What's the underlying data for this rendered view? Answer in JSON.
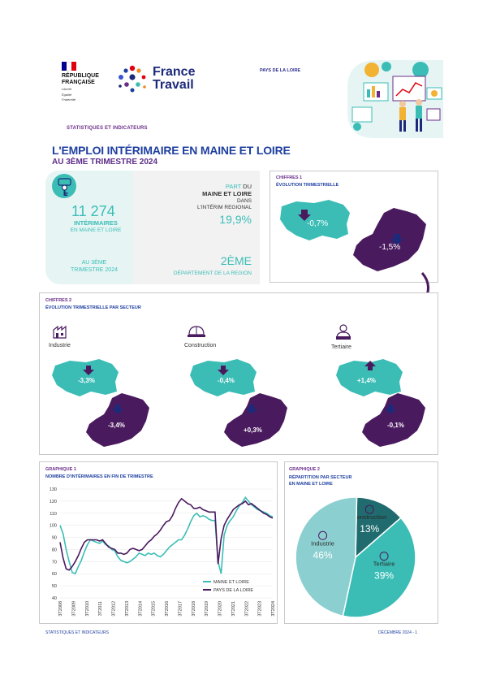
{
  "header": {
    "rf_line1": "RÉPUBLIQUE",
    "rf_line2": "FRANÇAISE",
    "rf_motto1": "Liberté",
    "rf_motto2": "Égalité",
    "rf_motto3": "Fraternité",
    "brand_line1": "France",
    "brand_line2": "Travail",
    "region_tag": "PAYS DE LA LOIRE",
    "section_tag": "STATISTIQUES ET INDICATEURS",
    "title": "L'EMPLOI INTÉRIMAIRE EN MAINE ET LOIRE",
    "subtitle": "AU 3ÈME TRIMESTRE 2024"
  },
  "key_figures": {
    "count": "11 274",
    "count_label": "INTÉRIMAIRES",
    "count_sub": "EN MAINE ET LOIRE",
    "period_line1": "AU 3ÈME",
    "period_line2": "TRIMESTRE 2024",
    "share_part": "PART",
    "share_du": "DU",
    "share_dept": "MAINE ET LOIRE",
    "share_dans": "DANS",
    "share_rest": "L'INTÉRIM REGIONAL",
    "share_value": "19,9%",
    "rank_value": "2ÈME",
    "rank_label": "DÉPARTEMENT DE LA REGION"
  },
  "chiffres1": {
    "tag": "CHIFFRES 1",
    "title": "ÉVOLUTION TRIMESTRIELLE",
    "dept_value": "-0,7%",
    "region_value": "-1,5%"
  },
  "chiffres2": {
    "tag": "CHIFFRES 2",
    "title": "ÉVOLUTION TRIMESTRIELLE PAR SECTEUR",
    "sectors": [
      {
        "name": "Industrie",
        "dept": "-3,3%",
        "region": "-3,4%",
        "dept_dir": "down"
      },
      {
        "name": "Construction",
        "dept": "-0,4%",
        "region": "+0,3%",
        "dept_dir": "down"
      },
      {
        "name": "Tertiaire",
        "dept": "+1,4%",
        "region": "-0,1%",
        "dept_dir": "up"
      }
    ]
  },
  "graph1": {
    "tag": "GRAPHIQUE 1",
    "title": "NOMBRE D'INTÉRIMAIRES EN FIN DE TRIMESTRE"
  },
  "graph2": {
    "tag": "GRAPHIQUE 2",
    "title_line1": "RÉPARTITION PAR SECTEUR",
    "title_line2": "EN MAINE ET LOIRE"
  },
  "chart_data": [
    {
      "type": "line",
      "title": "NOMBRE D'INTÉRIMAIRES EN FIN DE TRIMESTRE",
      "ylim": [
        40,
        130
      ],
      "yticks": [
        40,
        50,
        60,
        70,
        80,
        90,
        100,
        110,
        120,
        130
      ],
      "xtick_labels": [
        "3T2008",
        "3T2009",
        "3T2010",
        "3T2011",
        "3T2012",
        "3T2013",
        "3T2014",
        "3T2015",
        "3T2016",
        "3T2017",
        "3T2018",
        "3T2019",
        "3T2020",
        "3T2021",
        "3T2022",
        "3T2023",
        "3T2024"
      ],
      "legend_position": "bottom-right",
      "series": [
        {
          "name": "MAINE ET LOIRE",
          "color": "#3bbdb6",
          "values": [
            100,
            93,
            80,
            70,
            61,
            60,
            66,
            71,
            78,
            84,
            88,
            87,
            86,
            85,
            87,
            84,
            83,
            80,
            79,
            74,
            71,
            70,
            69,
            70,
            72,
            74,
            77,
            76,
            75,
            77,
            76,
            77,
            75,
            74,
            76,
            79,
            82,
            84,
            86,
            88,
            88,
            92,
            97,
            103,
            108,
            110,
            107,
            108,
            107,
            105,
            104,
            104,
            70,
            60,
            92,
            100,
            104,
            107,
            112,
            116,
            119,
            123,
            120,
            117,
            115,
            113,
            112,
            111,
            110,
            108,
            107
          ]
        },
        {
          "name": "PAYS DE LA LOIRE",
          "color": "#4a1a5e",
          "values": [
            86,
            73,
            64,
            63,
            66,
            70,
            75,
            81,
            86,
            88,
            88,
            88,
            88,
            87,
            88,
            85,
            82,
            81,
            80,
            77,
            77,
            76,
            77,
            80,
            81,
            80,
            79,
            80,
            83,
            86,
            88,
            91,
            93,
            96,
            100,
            103,
            104,
            108,
            114,
            119,
            122,
            120,
            118,
            117,
            114,
            114,
            115,
            113,
            112,
            111,
            111,
            111,
            68,
            89,
            100,
            105,
            109,
            113,
            115,
            117,
            118,
            120,
            117,
            118,
            116,
            114,
            112,
            110,
            109,
            107,
            106
          ]
        }
      ]
    },
    {
      "type": "pie",
      "title": "RÉPARTITION PAR SECTEUR EN MAINE ET LOIRE",
      "slices": [
        {
          "label": "Construction",
          "value": 13,
          "display": "13%",
          "color": "#1f6b6e"
        },
        {
          "label": "Tertiaire",
          "value": 39,
          "display": "39%",
          "color": "#3bbdb6"
        },
        {
          "label": "Industrie",
          "value": 46,
          "display": "46%",
          "color": "#8ccfd0"
        }
      ]
    }
  ],
  "footer": {
    "left": "STATISTIQUES ET INDICATEURS",
    "right": "DÉCEMBRE 2024 - 1"
  },
  "colors": {
    "teal": "#3bbdb6",
    "purple": "#4a1a5e",
    "navy": "#1e3fa0"
  }
}
